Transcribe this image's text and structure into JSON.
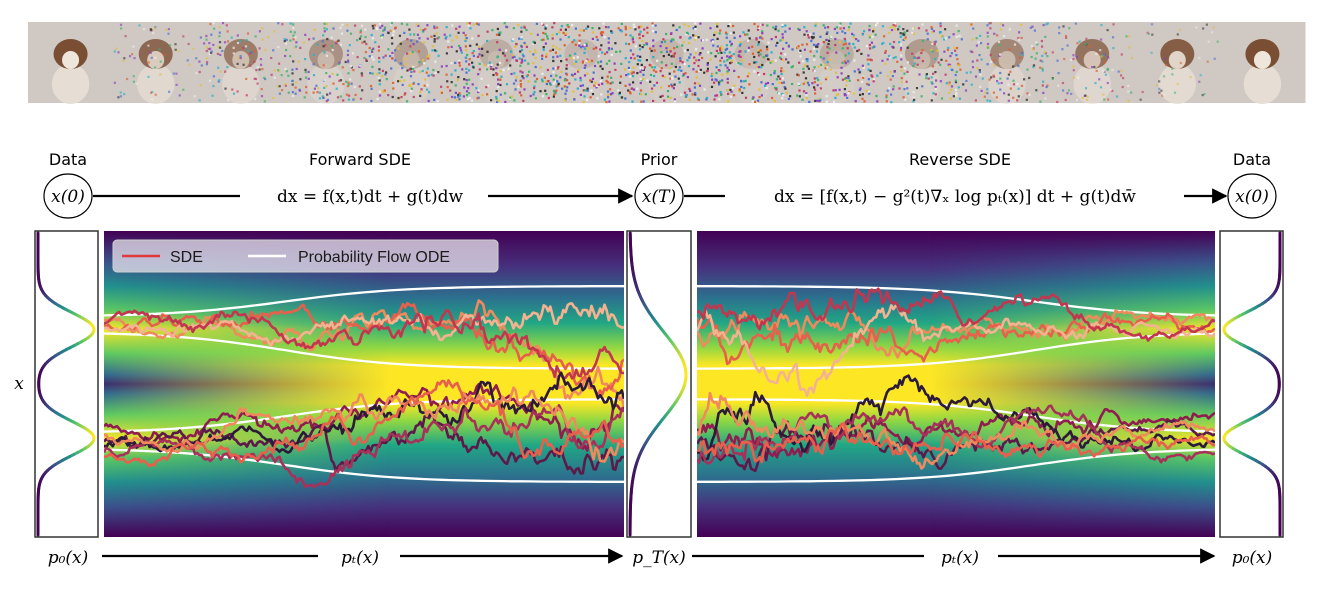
{
  "top_strip": {
    "frame_count": 15,
    "description_icon": "dog-photo-noise-sequence"
  },
  "labels": {
    "data_left": "Data",
    "forward_sde": "Forward SDE",
    "prior": "Prior",
    "reverse_sde": "Reverse SDE",
    "data_right": "Data",
    "x_axis_label": "x"
  },
  "nodes": {
    "x0_left": "x(0)",
    "xT": "x(T)",
    "x0_right": "x(0)"
  },
  "equations": {
    "forward": "dx = f(x,t)dt + g(t)dw",
    "reverse": "dx = [f(x,t) − g²(t)∇ₓ log pₜ(x)] dt + g(t)dw̄"
  },
  "bottom": {
    "p0_left": "p₀(x)",
    "pt_left": "pₜ(x)",
    "pT": "p_T(x)",
    "pt_right": "pₜ(x)",
    "p0_right": "p₀(x)"
  },
  "legend": {
    "sde_label": "SDE",
    "ode_label": "Probability Flow ODE",
    "sde_color": "#e0383b",
    "ode_color": "#ffffff"
  },
  "colors": {
    "viridis_dark": "#440154",
    "viridis_mid": "#21918c",
    "viridis_bright": "#fde725",
    "trajectory_palette": [
      "#f08a5d",
      "#e8604c",
      "#f3b391",
      "#c2364f",
      "#8f1d4f",
      "#5c1a4a",
      "#2b1a3a",
      "#a8315a"
    ]
  }
}
